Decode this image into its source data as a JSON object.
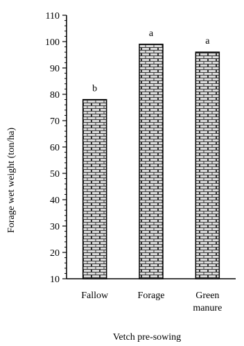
{
  "chart_data": {
    "type": "bar",
    "categories": [
      [
        "Fallow"
      ],
      [
        "Forage"
      ],
      [
        "Green",
        "manure"
      ]
    ],
    "values": [
      78,
      99,
      96
    ],
    "significance": [
      "b",
      "a",
      "a"
    ],
    "title": "",
    "xlabel": "Vetch pre-sowing",
    "ylabel": "Forage wet weight (ton/ha)",
    "ylim": [
      10,
      110
    ],
    "yticks": [
      10,
      20,
      30,
      40,
      50,
      60,
      70,
      80,
      90,
      100,
      110
    ],
    "grid": false,
    "legend": "none",
    "bar_pattern": "brick",
    "colors": {
      "bar_fill": "#dcdcdc",
      "bar_stroke": "#000000",
      "mortar": "#ffffff"
    }
  }
}
